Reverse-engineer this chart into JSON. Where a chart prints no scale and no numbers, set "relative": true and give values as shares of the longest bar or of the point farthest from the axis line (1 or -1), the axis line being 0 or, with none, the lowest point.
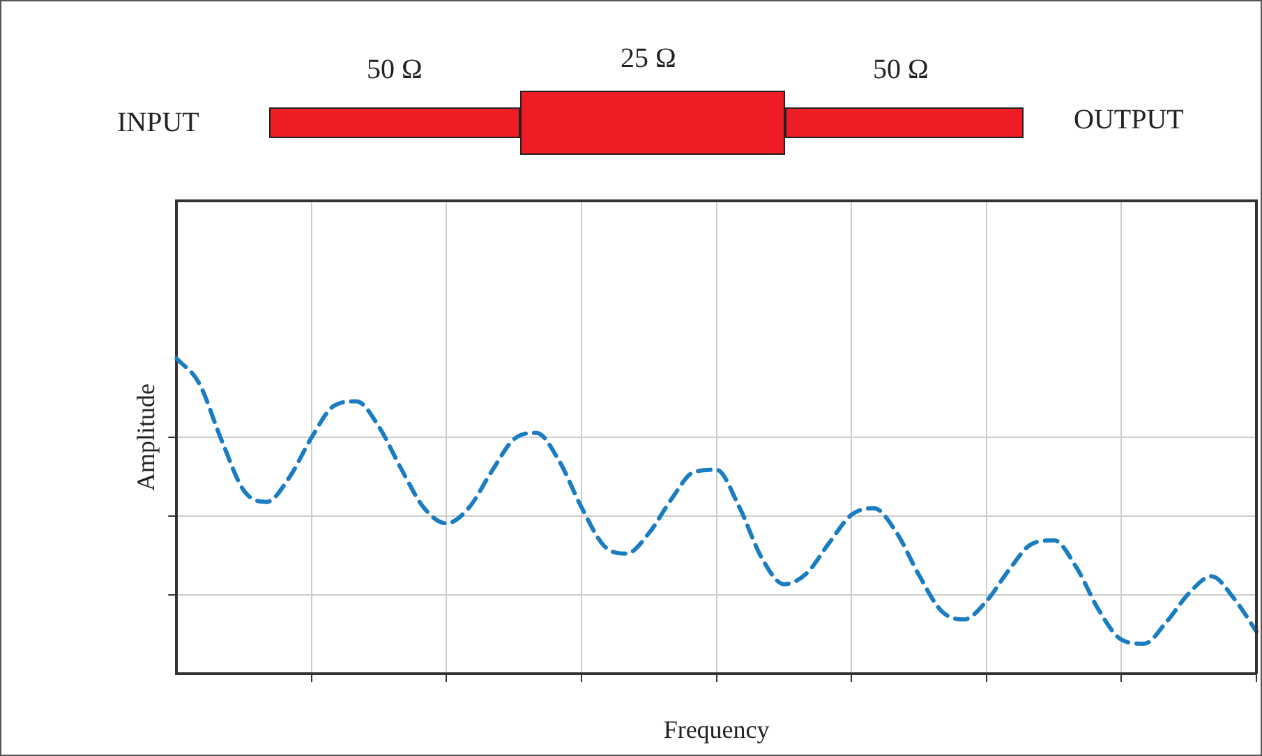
{
  "chart_data": {
    "type": "line",
    "relative": true,
    "xlabel": "Frequency",
    "ylabel": "Amplitude",
    "annotations": [
      "INPUT",
      "50 Ω",
      "25 Ω",
      "50 Ω",
      "OUTPUT"
    ],
    "categories": [
      null,
      null,
      null,
      null,
      null,
      null,
      null,
      null,
      null,
      null,
      null,
      null,
      null,
      null,
      null,
      null,
      null,
      null,
      null,
      null,
      null,
      null,
      null,
      null,
      null,
      null,
      null,
      null,
      null,
      null,
      null,
      null,
      null,
      null,
      null,
      null,
      null,
      null,
      null,
      null,
      null,
      null,
      null,
      null,
      null,
      null,
      null,
      null,
      null
    ],
    "series": [
      {
        "color": "#1a7cc1",
        "values": [
          1.0,
          0.922,
          0.741,
          0.58,
          0.545,
          0.621,
          0.749,
          0.85,
          0.864,
          0.783,
          0.648,
          0.526,
          0.477,
          0.527,
          0.641,
          0.744,
          0.764,
          0.676,
          0.528,
          0.406,
          0.381,
          0.446,
          0.554,
          0.64,
          0.647,
          0.531,
          0.369,
          0.284,
          0.318,
          0.414,
          0.504,
          0.525,
          0.448,
          0.313,
          0.199,
          0.172,
          0.23,
          0.329,
          0.411,
          0.423,
          0.337,
          0.201,
          0.108,
          0.095,
          0.164,
          0.255,
          0.309,
          0.239,
          0.134
        ]
      }
    ],
    "grid": true,
    "legend": false,
    "marker": "none",
    "line_style": "dashed"
  }
}
